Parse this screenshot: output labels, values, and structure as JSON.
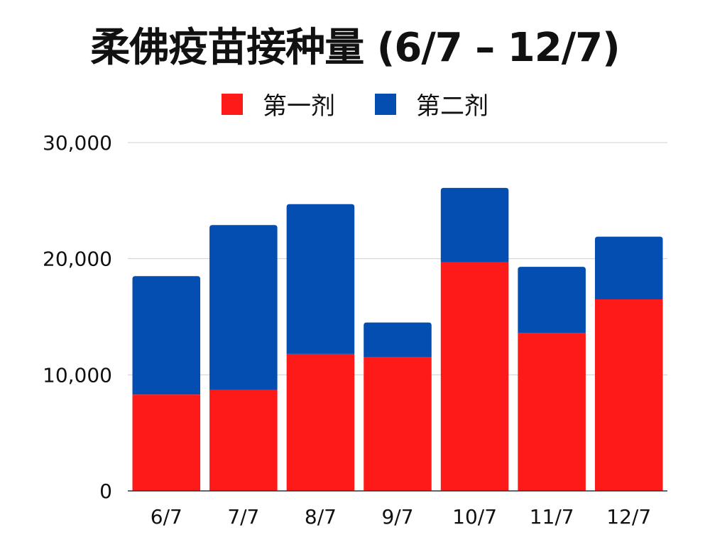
{
  "chart_data": {
    "type": "bar",
    "stacked": true,
    "title": "柔佛疫苗接种量 (6/7 – 12/7)",
    "categories": [
      "6/7",
      "7/7",
      "8/7",
      "9/7",
      "10/7",
      "11/7",
      "12/7"
    ],
    "series": [
      {
        "name": "第一剂",
        "color": "#ff1a1a",
        "values": [
          8300,
          8700,
          11800,
          11500,
          19700,
          13600,
          16500
        ]
      },
      {
        "name": "第二剂",
        "color": "#034eb0",
        "values": [
          10200,
          14200,
          12900,
          3000,
          6400,
          5700,
          5400
        ]
      }
    ],
    "ylim": [
      0,
      30000
    ],
    "yticks": [
      0,
      10000,
      20000,
      30000
    ],
    "ytick_labels": [
      "0",
      "10,000",
      "20,000",
      "30,000"
    ],
    "xlabel": "",
    "ylabel": "",
    "grid": true,
    "legend_position": "top-center"
  }
}
